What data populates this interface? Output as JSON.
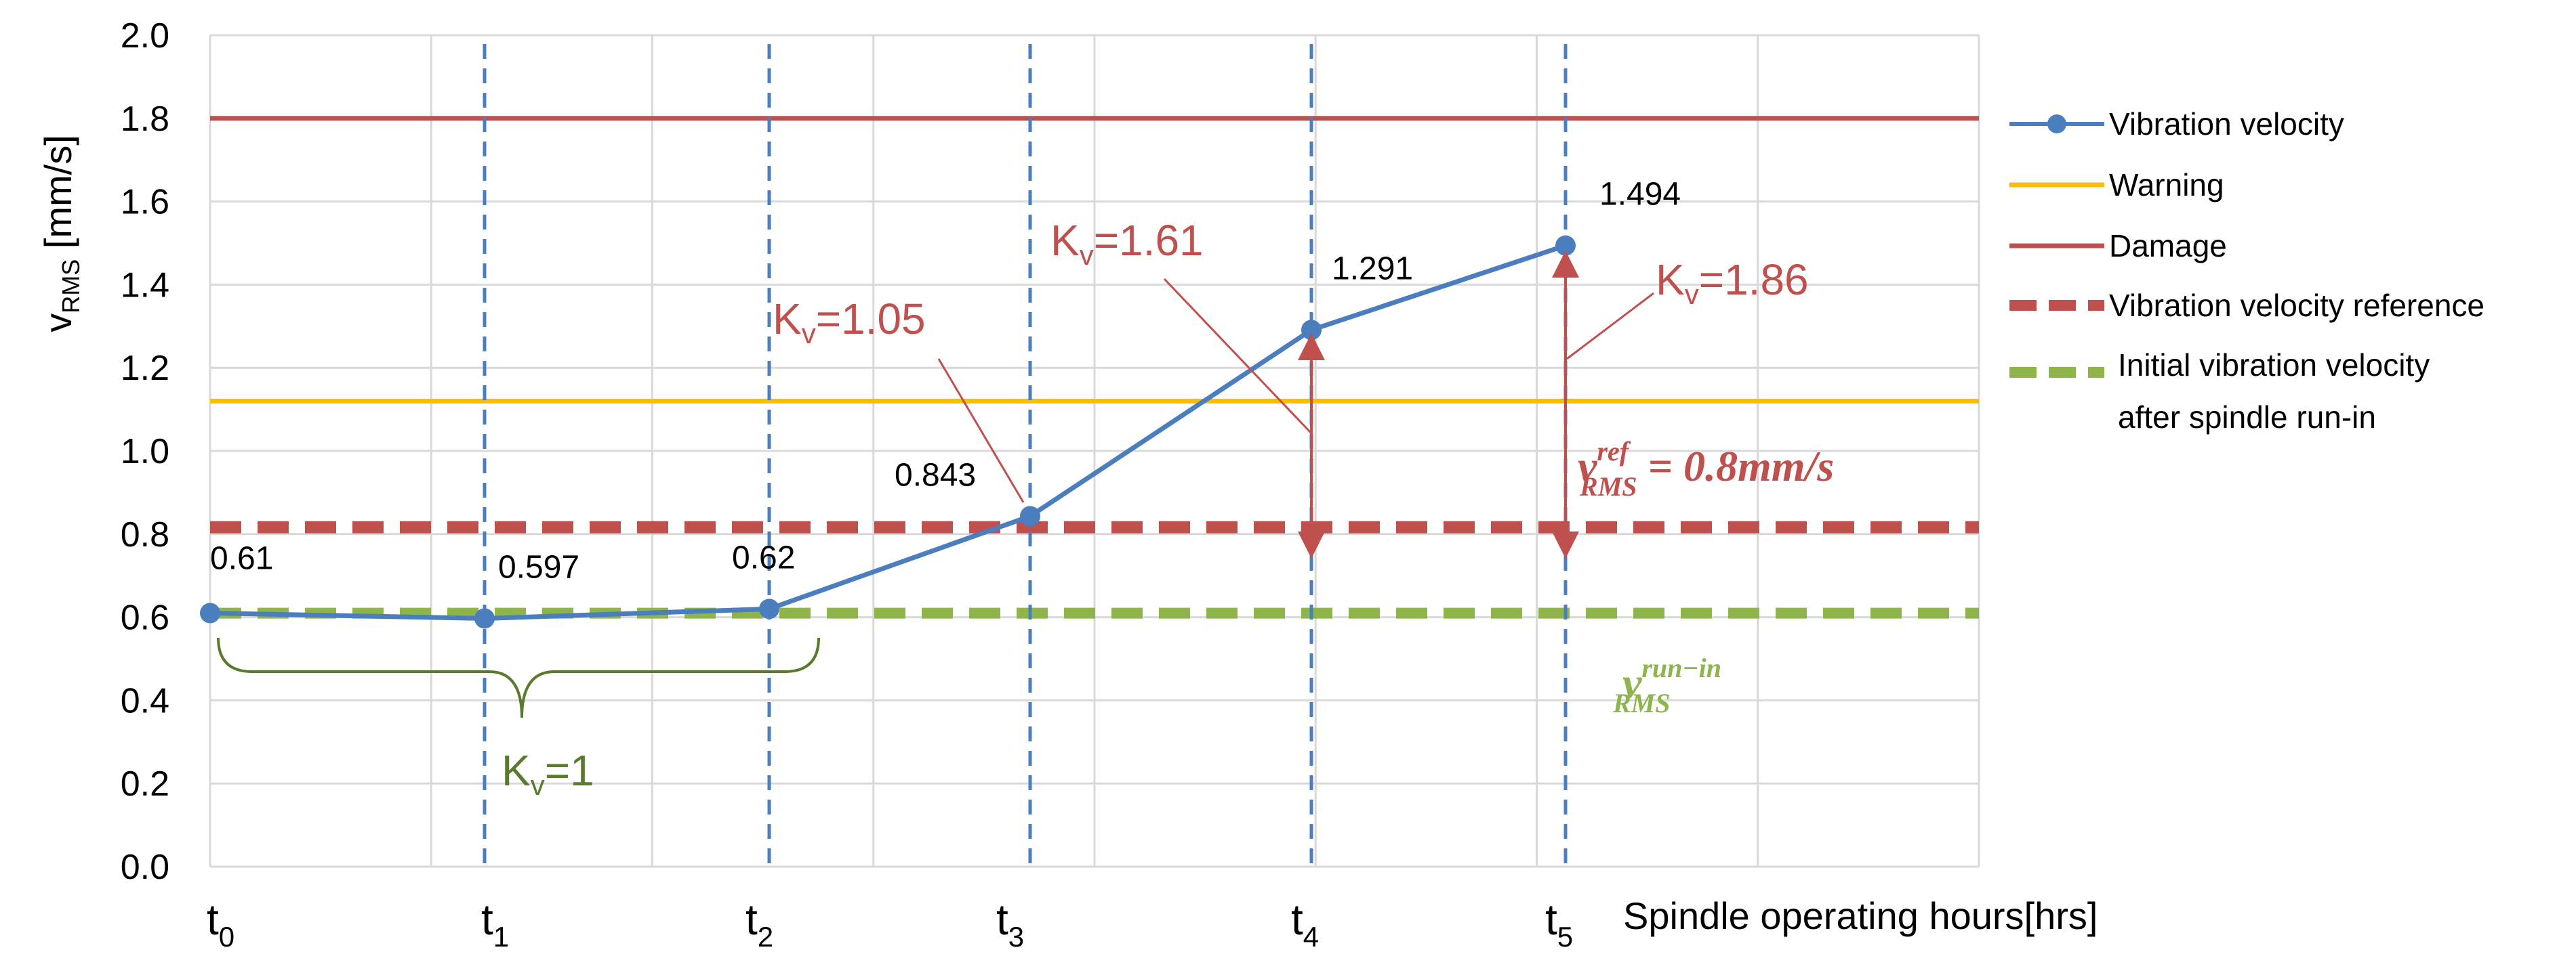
{
  "chart_data": {
    "type": "line",
    "title": "",
    "xlabel": "Spindle operating hours[hrs]",
    "ylabel": {
      "base": "v",
      "sub": "RMS",
      "unit": " [mm/s]"
    },
    "ylim": [
      0,
      2.0
    ],
    "y_ticks": [
      "0.0",
      "0.2",
      "0.4",
      "0.6",
      "0.8",
      "1.0",
      "1.2",
      "1.4",
      "1.6",
      "1.8",
      "2.0"
    ],
    "grid": true,
    "legend_position": "right",
    "x_ticks": [
      {
        "base": "t",
        "sub": "0"
      },
      {
        "base": "t",
        "sub": "1"
      },
      {
        "base": "t",
        "sub": "2"
      },
      {
        "base": "t",
        "sub": "3"
      },
      {
        "base": "t",
        "sub": "4"
      },
      {
        "base": "t",
        "sub": "5"
      }
    ],
    "series": [
      {
        "name": "Vibration velocity",
        "color": "#4a7ebf",
        "style": "line-marker",
        "x": [
          0,
          1,
          2,
          3,
          4,
          5
        ],
        "values": [
          0.61,
          0.597,
          0.62,
          0.843,
          1.291,
          1.494
        ],
        "labels": [
          "0.61",
          "0.597",
          "0.62",
          "0.843",
          "1.291",
          "1.494"
        ]
      },
      {
        "name": "Warning",
        "color": "#fbbc05",
        "style": "solid",
        "value": 1.12
      },
      {
        "name": "Damage",
        "color": "#c0504d",
        "style": "solid",
        "value": 1.8
      },
      {
        "name": "Vibration velocity  reference",
        "color": "#c0504d",
        "style": "dashed",
        "value": 0.8
      },
      {
        "name": "Initial vibration velocity",
        "name_line2": "after spindle  run-in",
        "color": "#8db54b",
        "style": "dashed",
        "value": 0.6
      }
    ],
    "annotations": {
      "kv_labels": [
        {
          "base": "K",
          "sub": "v",
          "text": "=1.05",
          "color": "#c0504d"
        },
        {
          "base": "K",
          "sub": "v",
          "text": "=1.61",
          "color": "#c0504d"
        },
        {
          "base": "K",
          "sub": "v",
          "text": "=1.86",
          "color": "#c0504d"
        },
        {
          "base": "K",
          "sub": "v",
          "text": "=1",
          "color": "#5a7a2e"
        }
      ],
      "ref_formula": {
        "v": "v",
        "sup": "ref",
        "sub": "RMS",
        "rest": " = 0.8mm/s",
        "color": "#c0504d"
      },
      "runin_formula": {
        "v": "v",
        "sup": "run−in",
        "sub": "RMS",
        "color": "#8db54b"
      }
    }
  }
}
